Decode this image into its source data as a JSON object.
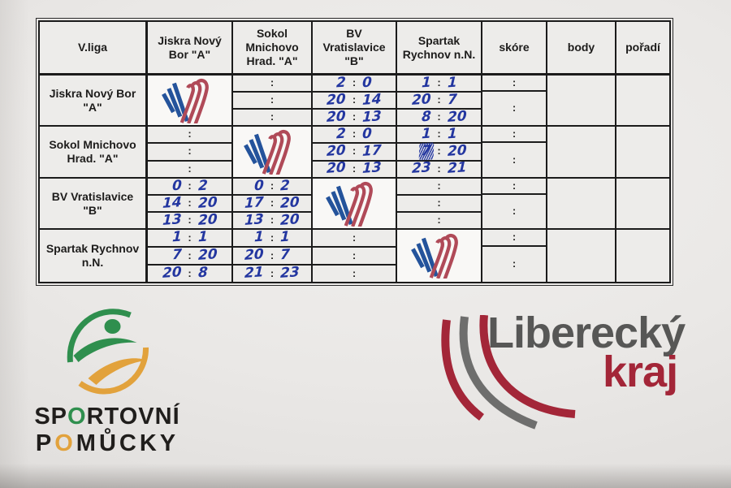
{
  "table": {
    "corner_label": "V.liga",
    "column_headers": [
      "Jiskra Nový\nBor \"A\"",
      "Sokol\nMnichovo\nHrad. \"A\"",
      "BV\nVratislavice\n\"B\"",
      "Spartak\nRychnov n.N.",
      "skóre",
      "body",
      "pořadí"
    ],
    "rows": [
      {
        "team": "Jiskra Nový Bor\n\"A\"",
        "matches": [
          {
            "logo": true
          },
          {
            "lines": [
              [
                "",
                ""
              ],
              [
                "",
                ""
              ],
              [
                "",
                ""
              ]
            ]
          },
          {
            "lines": [
              [
                "2",
                "0"
              ],
              [
                "20",
                "14"
              ],
              [
                "20",
                "13"
              ]
            ]
          },
          {
            "lines": [
              [
                "1",
                "1"
              ],
              [
                "20",
                "7"
              ],
              [
                "8",
                "20"
              ]
            ]
          }
        ],
        "skore_top": ":",
        "skore_bottom": ":",
        "body": "",
        "poradi": ""
      },
      {
        "team": "Sokol Mnichovo\nHrad. \"A\"",
        "matches": [
          {
            "lines": [
              [
                "",
                ""
              ],
              [
                "",
                ""
              ],
              [
                "",
                ""
              ]
            ]
          },
          {
            "logo": true
          },
          {
            "lines": [
              [
                "2",
                "0"
              ],
              [
                "20",
                "17"
              ],
              [
                "20",
                "13"
              ]
            ]
          },
          {
            "lines": [
              [
                "1",
                "1"
              ],
              [
                "7",
                "20",
                "scribble-left"
              ],
              [
                "23",
                "21"
              ]
            ]
          }
        ],
        "skore_top": ":",
        "skore_bottom": ":",
        "body": "",
        "poradi": ""
      },
      {
        "team": "BV Vratislavice\n\"B\"",
        "matches": [
          {
            "lines": [
              [
                "0",
                "2"
              ],
              [
                "14",
                "20"
              ],
              [
                "13",
                "20"
              ]
            ]
          },
          {
            "lines": [
              [
                "0",
                "2"
              ],
              [
                "17",
                "20"
              ],
              [
                "13",
                "20"
              ]
            ]
          },
          {
            "logo": true
          },
          {
            "lines": [
              [
                "",
                ""
              ],
              [
                "",
                ""
              ],
              [
                "",
                ""
              ]
            ]
          }
        ],
        "skore_top": ":",
        "skore_bottom": ":",
        "body": "",
        "poradi": ""
      },
      {
        "team": "Spartak Rychnov\nn.N.",
        "matches": [
          {
            "lines": [
              [
                "1",
                "1"
              ],
              [
                "7",
                "20"
              ],
              [
                "20",
                "8"
              ]
            ]
          },
          {
            "lines": [
              [
                "1",
                "1"
              ],
              [
                "20",
                "7"
              ],
              [
                "21",
                "23"
              ]
            ]
          },
          {
            "lines": [
              [
                "",
                ""
              ],
              [
                "",
                ""
              ],
              [
                "",
                ""
              ]
            ]
          },
          {
            "logo": true
          }
        ],
        "skore_top": ":",
        "skore_bottom": ":",
        "body": "",
        "poradi": ""
      }
    ],
    "printed_colon": ":",
    "colors": {
      "ink_blue": "#2336a0",
      "print_black": "#1c1c1c",
      "club_logo_blue": "#24539b",
      "club_logo_red": "#b04a58"
    }
  },
  "sponsors": {
    "sportovni": {
      "seg1": [
        "SP",
        "O",
        "RTOVNÍ"
      ],
      "seg2": [
        "P",
        "O",
        "MŮCKY"
      ],
      "green": "#2f8f4e",
      "orange": "#e2a23c"
    },
    "kraj": {
      "line1": "Liberecký",
      "line2": "kraj",
      "gray": "#575756",
      "red": "#a32638"
    }
  }
}
